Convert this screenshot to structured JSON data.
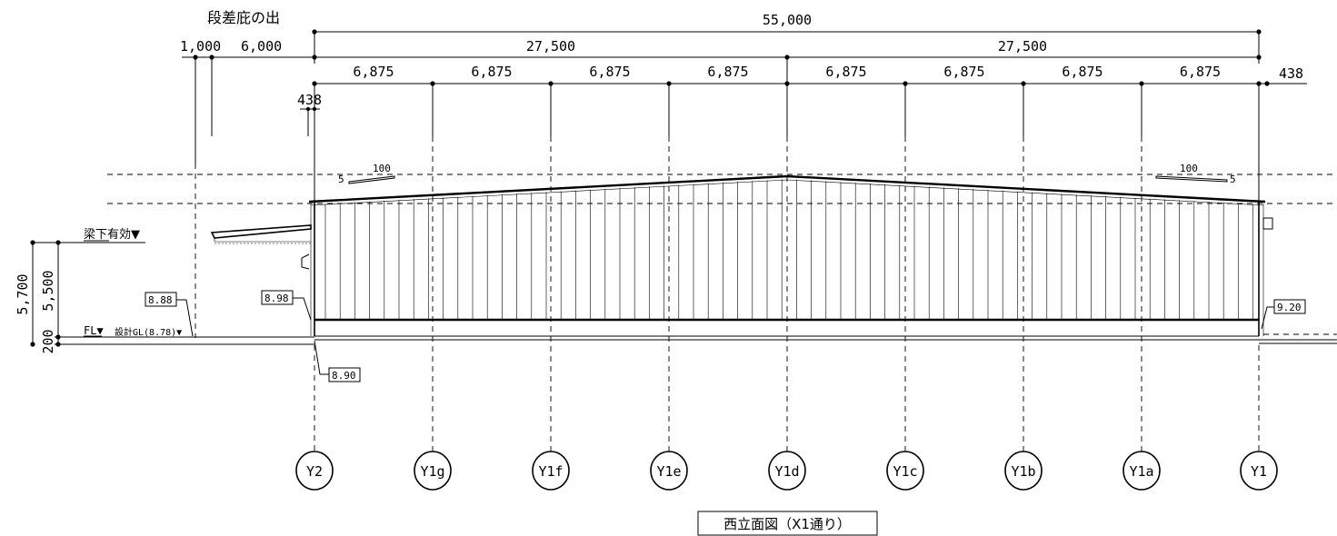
{
  "header_label": "段差庇の出",
  "dimensions": {
    "overall": "55,000",
    "half_left": "27,500",
    "half_right": "27,500",
    "bay_span": "6,875",
    "canopy_1000": "1,000",
    "canopy_6000": "6,000",
    "offset_left_438": "438",
    "offset_right_438": "438"
  },
  "slope_left": {
    "rise": "5",
    "run": "100"
  },
  "slope_right": {
    "run": "100",
    "rise": "5"
  },
  "level_labels": {
    "beam_under": "梁下有効▼",
    "fl": "FL▼",
    "design_gl": "設計GL(8.78)▼"
  },
  "vertical_dims": {
    "total": "5,700",
    "upper": "5,500",
    "base": "200"
  },
  "elevation_tags": {
    "left_ground": "8.88",
    "y2_top": "8.98",
    "y2_bottom": "8.90",
    "y1_right": "9.20"
  },
  "grid_labels": [
    "Y2",
    "Y1g",
    "Y1f",
    "Y1e",
    "Y1d",
    "Y1c",
    "Y1b",
    "Y1a",
    "Y1"
  ],
  "drawing_title": "西立面図（X1通り）"
}
